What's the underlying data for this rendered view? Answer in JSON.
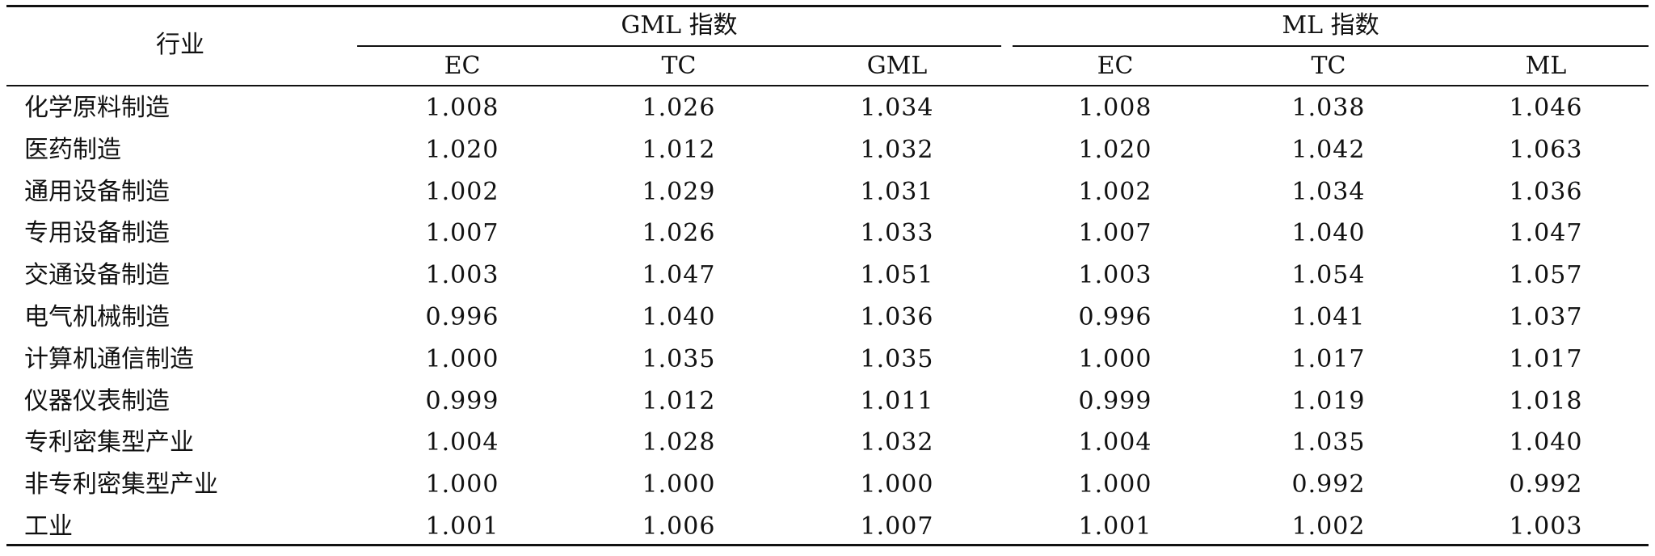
{
  "header": {
    "industry": "行业",
    "gml_group": "GML 指数",
    "ml_group": "ML 指数",
    "sub_columns": [
      "EC",
      "TC",
      "GML",
      "EC",
      "TC",
      "ML"
    ]
  },
  "rows": [
    {
      "industry": "化学原料制造",
      "values": [
        "1.008",
        "1.026",
        "1.034",
        "1.008",
        "1.038",
        "1.046"
      ]
    },
    {
      "industry": "医药制造",
      "values": [
        "1.020",
        "1.012",
        "1.032",
        "1.020",
        "1.042",
        "1.063"
      ]
    },
    {
      "industry": "通用设备制造",
      "values": [
        "1.002",
        "1.029",
        "1.031",
        "1.002",
        "1.034",
        "1.036"
      ]
    },
    {
      "industry": "专用设备制造",
      "values": [
        "1.007",
        "1.026",
        "1.033",
        "1.007",
        "1.040",
        "1.047"
      ]
    },
    {
      "industry": "交通设备制造",
      "values": [
        "1.003",
        "1.047",
        "1.051",
        "1.003",
        "1.054",
        "1.057"
      ]
    },
    {
      "industry": "电气机械制造",
      "values": [
        "0.996",
        "1.040",
        "1.036",
        "0.996",
        "1.041",
        "1.037"
      ]
    },
    {
      "industry": "计算机通信制造",
      "values": [
        "1.000",
        "1.035",
        "1.035",
        "1.000",
        "1.017",
        "1.017"
      ]
    },
    {
      "industry": "仪器仪表制造",
      "values": [
        "0.999",
        "1.012",
        "1.011",
        "0.999",
        "1.019",
        "1.018"
      ]
    },
    {
      "industry": "专利密集型产业",
      "values": [
        "1.004",
        "1.028",
        "1.032",
        "1.004",
        "1.035",
        "1.040"
      ]
    },
    {
      "industry": "非专利密集型产业",
      "values": [
        "1.000",
        "1.000",
        "1.000",
        "1.000",
        "0.992",
        "0.992"
      ]
    },
    {
      "industry": "工业",
      "values": [
        "1.001",
        "1.006",
        "1.007",
        "1.001",
        "1.002",
        "1.003"
      ]
    }
  ]
}
